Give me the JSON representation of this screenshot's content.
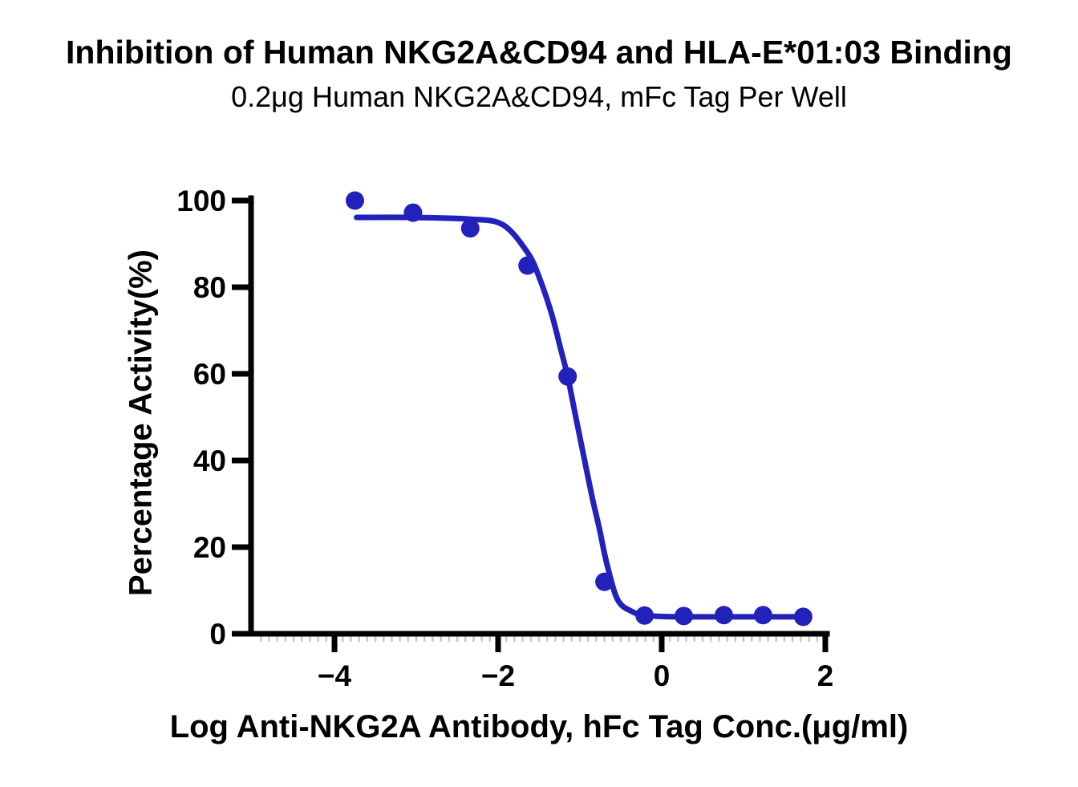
{
  "chart_data": {
    "type": "scatter",
    "title": "Inhibition of Human NKG2A&CD94 and HLA-E*01:03 Binding",
    "subtitle": "0.2μg Human NKG2A&CD94, mFc Tag Per Well",
    "xlabel": "Log Anti-NKG2A Antibody, hFc Tag Conc.(μg/ml)",
    "ylabel": "Percentage Activity(%)",
    "x_ticks": [
      -4,
      -2,
      0,
      2
    ],
    "y_ticks": [
      0,
      20,
      40,
      60,
      80,
      100
    ],
    "xlim": [
      -5.02,
      2.02
    ],
    "ylim": [
      0,
      100
    ],
    "x_minor_tick_step": 0.1,
    "grid": false,
    "legend": "none",
    "axis_color": "#000000",
    "minor_tick_color": "#c8c8c8",
    "series": [
      {
        "name": "Percentage Activity",
        "color": "#2222bb",
        "marker": "circle",
        "points": [
          {
            "x": -3.75,
            "y": 100.0
          },
          {
            "x": -3.04,
            "y": 97.2
          },
          {
            "x": -2.34,
            "y": 93.6
          },
          {
            "x": -1.64,
            "y": 85.0
          },
          {
            "x": -1.15,
            "y": 59.4
          },
          {
            "x": -0.7,
            "y": 12.0
          },
          {
            "x": -0.21,
            "y": 4.2
          },
          {
            "x": 0.27,
            "y": 4.1
          },
          {
            "x": 0.76,
            "y": 4.3
          },
          {
            "x": 1.24,
            "y": 4.3
          },
          {
            "x": 1.73,
            "y": 3.9
          }
        ]
      }
    ],
    "fit_curve": {
      "name": "sigmoidal dose-response inhibition fit",
      "color": "#2222bb",
      "points": [
        [
          -3.73,
          96.1
        ],
        [
          -3.04,
          96.1
        ],
        [
          -2.34,
          95.7
        ],
        [
          -1.94,
          94.4
        ],
        [
          -1.64,
          88.0
        ],
        [
          -1.5,
          82.4
        ],
        [
          -1.35,
          74.1
        ],
        [
          -1.23,
          65.4
        ],
        [
          -1.15,
          59.4
        ],
        [
          -1.05,
          50.0
        ],
        [
          -0.95,
          40.7
        ],
        [
          -0.85,
          31.5
        ],
        [
          -0.76,
          24.1
        ],
        [
          -0.67,
          16.1
        ],
        [
          -0.54,
          7.9
        ],
        [
          -0.37,
          5.2
        ],
        [
          -0.21,
          4.3
        ],
        [
          0.0,
          4.0
        ],
        [
          0.27,
          3.9
        ],
        [
          0.76,
          3.9
        ],
        [
          1.24,
          3.9
        ],
        [
          1.73,
          3.9
        ]
      ]
    }
  }
}
